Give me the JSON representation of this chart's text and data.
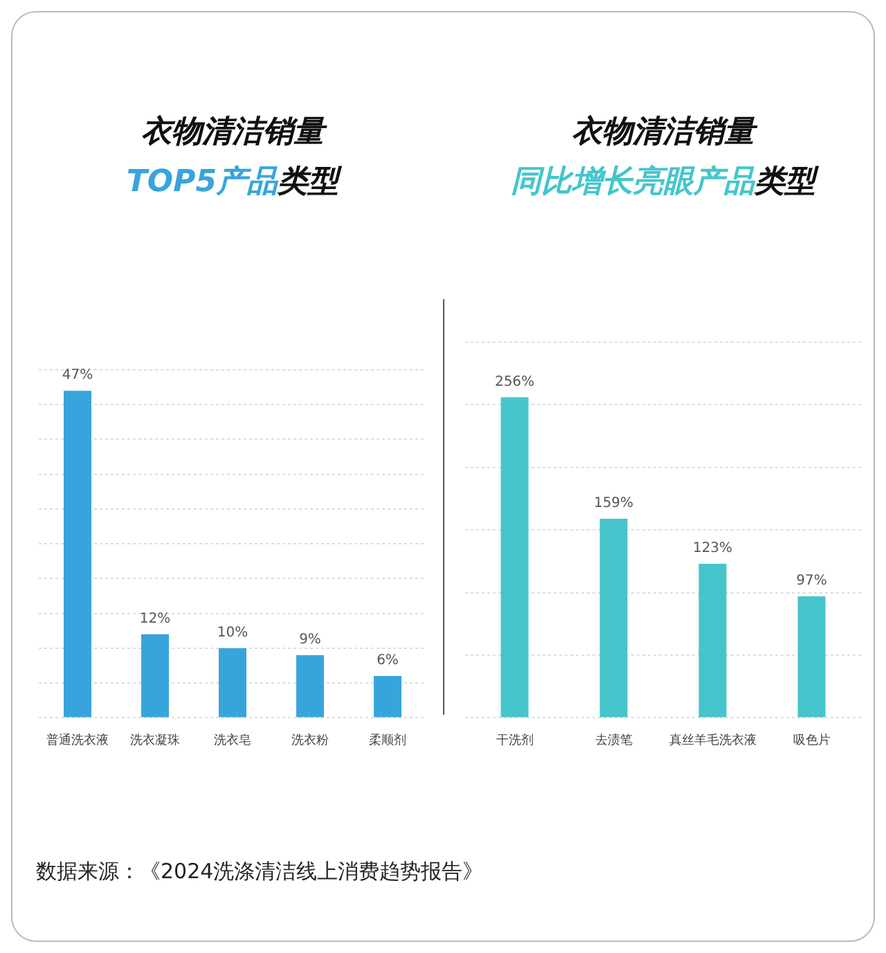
{
  "chart_data": [
    {
      "type": "bar",
      "title": "衣物清洁销量",
      "subtitle": "TOP5产品类型",
      "categories": [
        "普通洗衣液",
        "洗衣凝珠",
        "洗衣皂",
        "洗衣粉",
        "柔顺剂"
      ],
      "values": [
        47,
        12,
        10,
        9,
        6
      ],
      "value_labels": [
        "47%",
        "12%",
        "10%",
        "9%",
        "6%"
      ],
      "color": "#37a5db",
      "ylim": [
        0,
        50
      ],
      "yticks": [
        {
          "value": 0,
          "label": null
        },
        {
          "value": 5,
          "label": null
        },
        {
          "value": 10,
          "label": null
        },
        {
          "value": 15,
          "label": null
        },
        {
          "value": 20,
          "label": null
        },
        {
          "value": 25,
          "label": null
        },
        {
          "value": 30,
          "label": null
        },
        {
          "value": 35,
          "label": null
        },
        {
          "value": 40,
          "label": null
        },
        {
          "value": 45,
          "label": null
        },
        {
          "value": 50,
          "label": null
        }
      ],
      "grid": "y",
      "tick_labels": "x",
      "annotations": [
        "数据来源：《2024洗涤清洁线上消费趋势报告》"
      ]
    },
    {
      "type": "bar",
      "title": "衣物清洁销量",
      "subtitle": "同比增长亮眼产品类型",
      "categories": [
        "干洗剂",
        "去渍笔",
        "真丝羊毛洗衣液",
        "吸色片"
      ],
      "values": [
        256,
        159,
        123,
        97
      ],
      "value_labels": [
        "256%",
        "159%",
        "123%",
        "97%"
      ],
      "color": "#45c5cb",
      "ylim": [
        0,
        300
      ],
      "yticks": [
        {
          "value": 0,
          "label": null
        },
        {
          "value": 50,
          "label": null
        },
        {
          "value": 100,
          "label": null
        },
        {
          "value": 150,
          "label": null
        },
        {
          "value": 200,
          "label": null
        },
        {
          "value": 250,
          "label": null
        },
        {
          "value": 300,
          "label": null
        }
      ],
      "grid": "y",
      "tick_labels": "x"
    }
  ]
}
